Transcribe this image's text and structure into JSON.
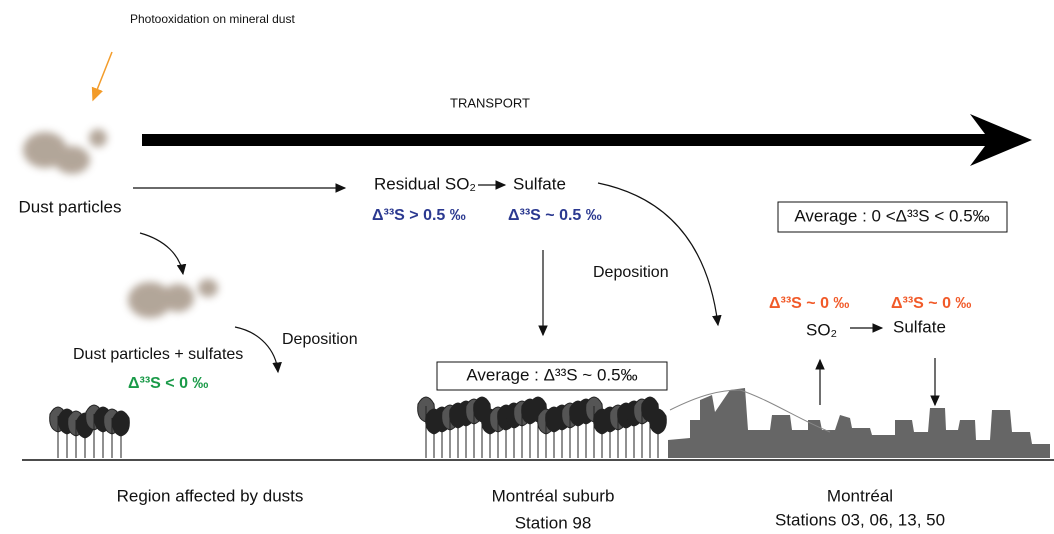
{
  "header": {
    "photooxidation": "Photooxidation on mineral dust",
    "transport": "TRANSPORT"
  },
  "left": {
    "dust": "Dust particles",
    "dust_sulfates": "Dust particles + sulfates",
    "deposition": "Deposition",
    "delta": "Δ³³S < 0 ‰",
    "region": "Region affected by dusts"
  },
  "middle": {
    "residual": "Residual SO₂",
    "sulfate": "Sulfate",
    "delta_residual": "Δ³³S > 0.5 ‰",
    "delta_sulfate": "Δ³³S ~ 0.5 ‰",
    "deposition": "Deposition",
    "average": "Average : Δ³³S ~ 0.5‰",
    "suburb": "Montréal suburb",
    "station": "Station 98"
  },
  "right": {
    "average": "Average : 0 <Δ³³S < 0.5‰",
    "delta_so2": "Δ³³S ~ 0 ‰",
    "delta_sulfate": "Δ³³S ~ 0 ‰",
    "so2": "SO₂",
    "sulfate": "Sulfate",
    "city": "Montréal",
    "stations": "Stations 03, 06, 13, 50"
  }
}
